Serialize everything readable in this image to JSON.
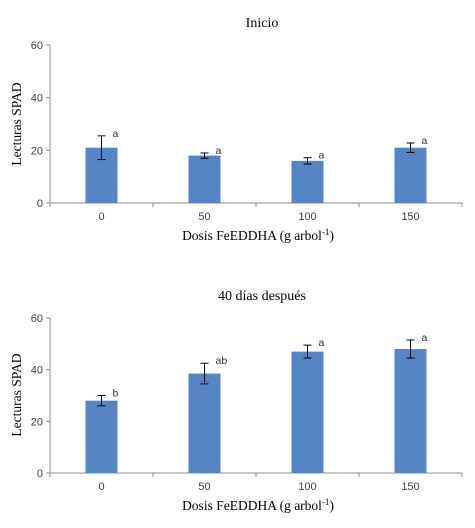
{
  "chart_data": [
    {
      "type": "bar",
      "title": "Inicio",
      "xlabel_main": "Dosis FeEDDHA (g arbol",
      "xlabel_sup": "-1",
      "xlabel_end": ")",
      "ylabel": "Lecturas SPAD",
      "categories": [
        "0",
        "50",
        "100",
        "150"
      ],
      "values": [
        21,
        18,
        16,
        21
      ],
      "errors": [
        4.5,
        1,
        1.2,
        1.8
      ],
      "significance": [
        "a",
        "a",
        "a",
        "a"
      ],
      "ylim": [
        0,
        60
      ],
      "yticks": [
        "0",
        "20",
        "40",
        "60"
      ],
      "bar_color": "#5585C5",
      "grid": false
    },
    {
      "type": "bar",
      "title": "40 días después",
      "xlabel_main": "Dosis FeEDDHA (g arbol",
      "xlabel_sup": "-1",
      "xlabel_end": ")",
      "ylabel": "Lecturas SPAD",
      "categories": [
        "0",
        "50",
        "100",
        "150"
      ],
      "values": [
        28,
        38.5,
        47,
        48
      ],
      "errors": [
        2,
        4,
        2.5,
        3.5
      ],
      "significance": [
        "b",
        "ab",
        "a",
        "a"
      ],
      "ylim": [
        0,
        60
      ],
      "yticks": [
        "0",
        "20",
        "40",
        "60"
      ],
      "bar_color": "#5585C5",
      "grid": false
    }
  ]
}
